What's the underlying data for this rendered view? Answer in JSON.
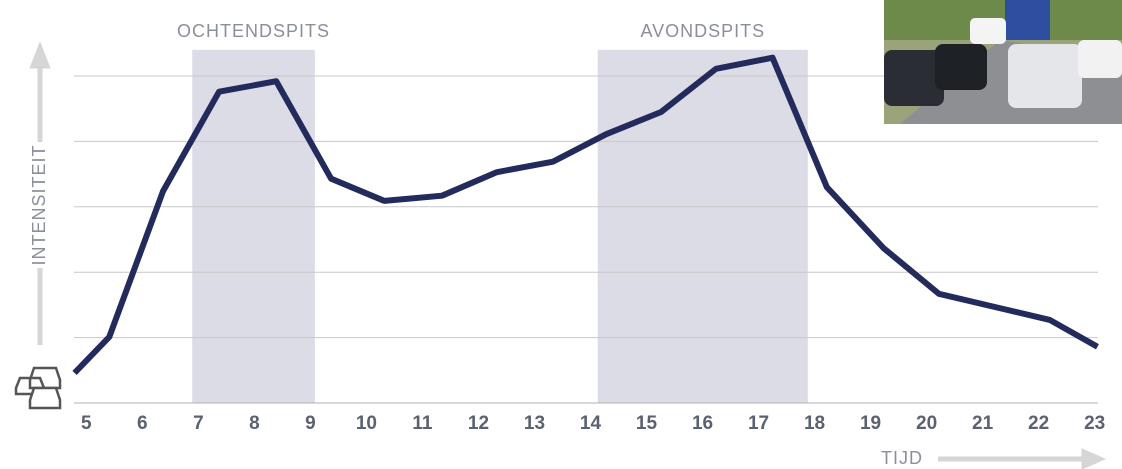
{
  "chart_data": {
    "type": "line",
    "x": [
      4.79,
      5.41,
      6.37,
      7.37,
      8.39,
      9.37,
      10.32,
      11.35,
      12.33,
      13.33,
      14.28,
      15.26,
      16.24,
      17.25,
      18.22,
      19.23,
      20.22,
      21.21,
      22.2,
      23.05
    ],
    "values": [
      0.46,
      1.01,
      3.24,
      4.76,
      4.92,
      3.43,
      3.09,
      3.17,
      3.53,
      3.69,
      4.11,
      4.45,
      5.11,
      5.28,
      3.3,
      2.37,
      1.67,
      1.47,
      1.27,
      0.86
    ],
    "color": "#232a5c",
    "x_label": "TIJD",
    "y_label": "INTENSITEIT",
    "xlim": [
      4.78,
      23.06
    ],
    "xticks": [
      5,
      6,
      7,
      8,
      9,
      10,
      11,
      12,
      13,
      14,
      15,
      16,
      17,
      18,
      19,
      20,
      21,
      22,
      23
    ],
    "ylim": [
      0,
      5.5
    ],
    "yticks": [
      0,
      1,
      2,
      3,
      4,
      5
    ],
    "grid": true,
    "shaded_regions": [
      {
        "label": "OCHTENDSPITS",
        "xlim": [
          6.89,
          9.08
        ],
        "top": 5.4,
        "color": "#dcdce6"
      },
      {
        "label": "AVONDSPITS",
        "xlim": [
          14.13,
          17.88
        ],
        "top": 5.4,
        "color": "#dcdce6"
      }
    ]
  }
}
